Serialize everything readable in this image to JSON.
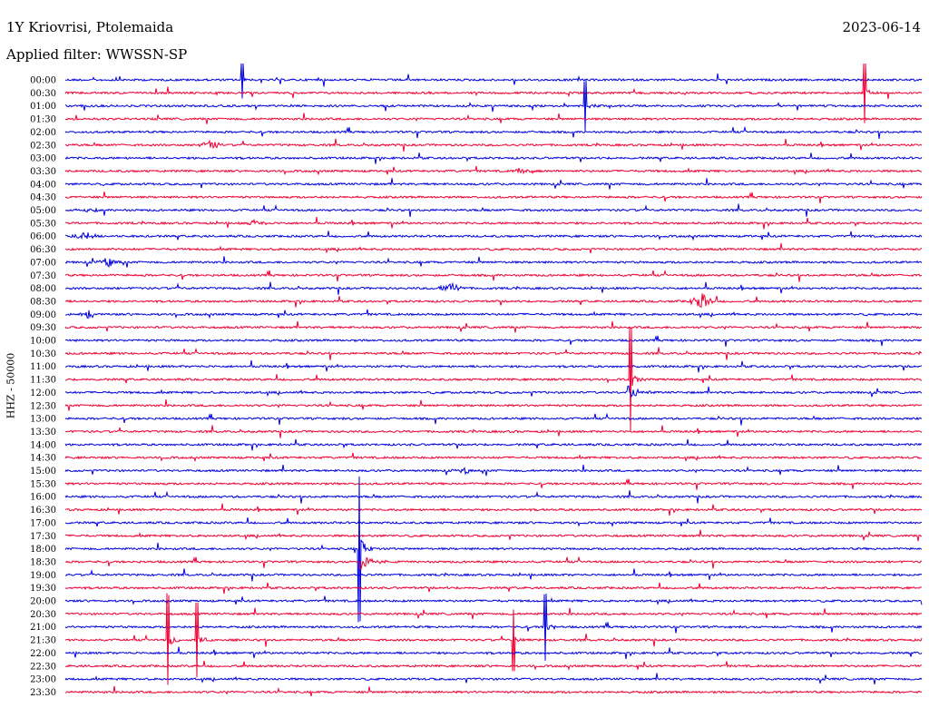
{
  "header": {
    "station": "1Y Kriovrisi, Ptolemaida",
    "date": "2023-06-14",
    "filter": "Applied filter: WWSSN-SP"
  },
  "chart_data": {
    "type": "helicorder",
    "ylabel": "HHZ - 50000",
    "row_labels": [
      "00:00",
      "00:30",
      "01:00",
      "01:30",
      "02:00",
      "02:30",
      "03:00",
      "03:30",
      "04:00",
      "04:30",
      "05:00",
      "05:30",
      "06:00",
      "06:30",
      "07:00",
      "07:30",
      "08:00",
      "08:30",
      "09:00",
      "09:30",
      "10:00",
      "10:30",
      "11:00",
      "11:30",
      "12:00",
      "12:30",
      "13:00",
      "13:30",
      "14:00",
      "14:30",
      "15:00",
      "15:30",
      "16:00",
      "16:30",
      "17:00",
      "17:30",
      "18:00",
      "18:30",
      "19:00",
      "19:30",
      "20:00",
      "20:30",
      "21:00",
      "21:30",
      "22:00",
      "22:30",
      "23:00",
      "23:30"
    ],
    "x_range_minutes": [
      0,
      30
    ],
    "colors": [
      "#0000dd",
      "#ee0033"
    ],
    "events": [
      {
        "row": 36,
        "minute": 10.3,
        "amp": 3.5,
        "kind": "spike",
        "note": "large event ~18:10"
      },
      {
        "row": 37,
        "minute": 10.3,
        "amp": 1.2,
        "kind": "coda"
      },
      {
        "row": 23,
        "minute": 19.8,
        "amp": 2.5,
        "kind": "spike"
      },
      {
        "row": 24,
        "minute": 19.7,
        "amp": 1.0,
        "kind": "coda"
      },
      {
        "row": 30,
        "minute": 14.0,
        "amp": 0.4,
        "kind": "burst"
      },
      {
        "row": 18,
        "minute": 0.8,
        "amp": 0.7,
        "kind": "burst"
      },
      {
        "row": 5,
        "minute": 5.1,
        "amp": 0.8,
        "kind": "burst"
      },
      {
        "row": 7,
        "minute": 16.1,
        "amp": 0.8,
        "kind": "burst"
      },
      {
        "row": 16,
        "minute": 13.5,
        "amp": 0.9,
        "kind": "burst"
      },
      {
        "row": 17,
        "minute": 22.3,
        "amp": 1.4,
        "kind": "burst"
      },
      {
        "row": 10,
        "minute": 0.8,
        "amp": 0.4,
        "kind": "burst"
      },
      {
        "row": 11,
        "minute": 6.6,
        "amp": 0.5,
        "kind": "burst"
      },
      {
        "row": 12,
        "minute": 0.7,
        "amp": 0.6,
        "kind": "burst"
      },
      {
        "row": 14,
        "minute": 1.5,
        "amp": 0.6,
        "kind": "burst"
      },
      {
        "row": 43,
        "minute": 3.6,
        "amp": 2.2,
        "kind": "spike"
      },
      {
        "row": 43,
        "minute": 4.6,
        "amp": 1.8,
        "kind": "spike"
      },
      {
        "row": 42,
        "minute": 16.8,
        "amp": 1.6,
        "kind": "spike"
      },
      {
        "row": 43,
        "minute": 15.7,
        "amp": 1.5,
        "kind": "spike"
      },
      {
        "row": 0,
        "minute": 6.2,
        "amp": 0.9,
        "kind": "spike"
      },
      {
        "row": 1,
        "minute": 28.0,
        "amp": 1.5,
        "kind": "spike"
      },
      {
        "row": 2,
        "minute": 18.2,
        "amp": 1.2,
        "kind": "spike"
      }
    ]
  }
}
